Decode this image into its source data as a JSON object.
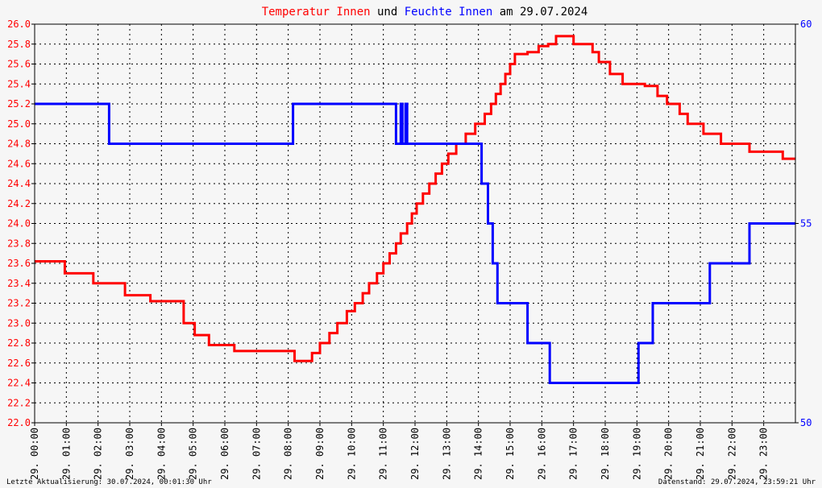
{
  "title": {
    "part1": "Temperatur Innen",
    "part2": " und ",
    "part3": "Feuchte Innen",
    "part4": " am 29.07.2024"
  },
  "colors": {
    "temperature": "#ff0000",
    "humidity": "#0000ff",
    "background": "#f6f6f6",
    "grid": "#000000"
  },
  "footer": {
    "left": "Letzte Aktualisierung: 30.07.2024, 00:01:30 Uhr",
    "right": "Datenstand: 29.07.2024, 23:59:21 Uhr"
  },
  "chart_data": {
    "type": "line",
    "x_range": [
      0,
      24
    ],
    "x_ticks": [
      {
        "date": "29.",
        "time": "00:00"
      },
      {
        "date": "29.",
        "time": "01:00"
      },
      {
        "date": "29.",
        "time": "02:00"
      },
      {
        "date": "29.",
        "time": "03:00"
      },
      {
        "date": "29.",
        "time": "04:00"
      },
      {
        "date": "29.",
        "time": "05:00"
      },
      {
        "date": "29.",
        "time": "06:00"
      },
      {
        "date": "29.",
        "time": "07:00"
      },
      {
        "date": "29.",
        "time": "08:00"
      },
      {
        "date": "29.",
        "time": "09:00"
      },
      {
        "date": "29.",
        "time": "10:00"
      },
      {
        "date": "29.",
        "time": "11:00"
      },
      {
        "date": "29.",
        "time": "12:00"
      },
      {
        "date": "29.",
        "time": "13:00"
      },
      {
        "date": "29.",
        "time": "14:00"
      },
      {
        "date": "29.",
        "time": "15:00"
      },
      {
        "date": "29.",
        "time": "16:00"
      },
      {
        "date": "29.",
        "time": "17:00"
      },
      {
        "date": "29.",
        "time": "18:00"
      },
      {
        "date": "29.",
        "time": "19:00"
      },
      {
        "date": "29.",
        "time": "20:00"
      },
      {
        "date": "29.",
        "time": "21:00"
      },
      {
        "date": "29.",
        "time": "22:00"
      },
      {
        "date": "29.",
        "time": "23:00"
      }
    ],
    "y_left": {
      "range": [
        22.0,
        26.0
      ],
      "ticks": [
        "22.0",
        "22.2",
        "22.4",
        "22.6",
        "22.8",
        "23.0",
        "23.2",
        "23.4",
        "23.6",
        "23.8",
        "24.0",
        "24.2",
        "24.4",
        "24.6",
        "24.8",
        "25.0",
        "25.2",
        "25.4",
        "25.6",
        "25.8",
        "26.0"
      ]
    },
    "y_right": {
      "range": [
        50,
        60
      ],
      "ticks": [
        "50",
        "55",
        "60"
      ]
    },
    "grid": true,
    "series": [
      {
        "name": "Temperatur Innen",
        "axis": "left",
        "color": "#ff0000",
        "step": true,
        "points": [
          [
            0.0,
            23.62
          ],
          [
            0.95,
            23.5
          ],
          [
            1.85,
            23.4
          ],
          [
            2.85,
            23.28
          ],
          [
            3.65,
            23.22
          ],
          [
            4.7,
            23.0
          ],
          [
            5.05,
            22.88
          ],
          [
            5.5,
            22.78
          ],
          [
            6.3,
            22.72
          ],
          [
            8.2,
            22.62
          ],
          [
            8.75,
            22.7
          ],
          [
            9.0,
            22.8
          ],
          [
            9.3,
            22.9
          ],
          [
            9.55,
            23.0
          ],
          [
            9.85,
            23.12
          ],
          [
            10.1,
            23.2
          ],
          [
            10.35,
            23.3
          ],
          [
            10.55,
            23.4
          ],
          [
            10.8,
            23.5
          ],
          [
            11.0,
            23.6
          ],
          [
            11.2,
            23.7
          ],
          [
            11.4,
            23.8
          ],
          [
            11.55,
            23.9
          ],
          [
            11.75,
            24.0
          ],
          [
            11.9,
            24.1
          ],
          [
            12.05,
            24.2
          ],
          [
            12.25,
            24.3
          ],
          [
            12.45,
            24.4
          ],
          [
            12.65,
            24.5
          ],
          [
            12.85,
            24.6
          ],
          [
            13.05,
            24.7
          ],
          [
            13.3,
            24.8
          ],
          [
            13.6,
            24.9
          ],
          [
            13.9,
            25.0
          ],
          [
            14.2,
            25.1
          ],
          [
            14.4,
            25.2
          ],
          [
            14.55,
            25.3
          ],
          [
            14.7,
            25.4
          ],
          [
            14.85,
            25.5
          ],
          [
            15.0,
            25.6
          ],
          [
            15.15,
            25.7
          ],
          [
            15.55,
            25.72
          ],
          [
            15.9,
            25.78
          ],
          [
            16.2,
            25.8
          ],
          [
            16.45,
            25.88
          ],
          [
            17.0,
            25.8
          ],
          [
            17.6,
            25.72
          ],
          [
            17.8,
            25.62
          ],
          [
            18.15,
            25.5
          ],
          [
            18.55,
            25.4
          ],
          [
            19.25,
            25.38
          ],
          [
            19.65,
            25.28
          ],
          [
            19.95,
            25.2
          ],
          [
            20.35,
            25.1
          ],
          [
            20.6,
            25.0
          ],
          [
            21.1,
            24.9
          ],
          [
            21.65,
            24.8
          ],
          [
            22.55,
            24.72
          ],
          [
            23.6,
            24.65
          ],
          [
            24.0,
            24.65
          ]
        ]
      },
      {
        "name": "Feuchte Innen",
        "axis": "right",
        "color": "#0000ff",
        "step": true,
        "points": [
          [
            0.0,
            58.0
          ],
          [
            2.35,
            57.0
          ],
          [
            8.15,
            58.0
          ],
          [
            11.4,
            57.0
          ],
          [
            11.55,
            58.0
          ],
          [
            11.6,
            57.0
          ],
          [
            11.7,
            58.0
          ],
          [
            11.75,
            57.0
          ],
          [
            14.1,
            56.0
          ],
          [
            14.3,
            55.0
          ],
          [
            14.45,
            54.0
          ],
          [
            14.6,
            53.0
          ],
          [
            15.55,
            52.0
          ],
          [
            16.25,
            51.0
          ],
          [
            17.3,
            51.0
          ],
          [
            19.05,
            52.0
          ],
          [
            19.5,
            53.0
          ],
          [
            21.3,
            54.0
          ],
          [
            22.55,
            55.0
          ],
          [
            24.0,
            55.0
          ]
        ]
      }
    ]
  }
}
